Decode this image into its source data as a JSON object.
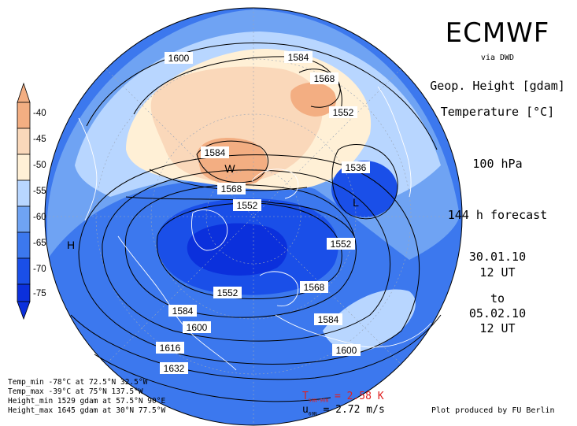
{
  "header": {
    "brand": "ECMWF",
    "via": "via DWD",
    "variable_1": "Geop. Height [gdam]",
    "variable_2": "Temperature [°C]",
    "level": "100 hPa",
    "forecast": "144 h forecast",
    "init_date": "30.01.10",
    "init_time": "12 UT",
    "to_label": "to",
    "valid_date": "05.02.10",
    "valid_time": "12 UT"
  },
  "legend": {
    "levels": [
      "-40",
      "-45",
      "-50",
      "-55",
      "-60",
      "-65",
      "-70",
      "-75"
    ],
    "colors": [
      "#f3ae82",
      "#fad8ba",
      "#fff0d6",
      "#b8d6ff",
      "#6fa3f3",
      "#3c78ee",
      "#1a4fe8",
      "#0b30dc"
    ]
  },
  "contours": {
    "labels": [
      "1600",
      "1584",
      "1568",
      "1552",
      "1584",
      "1568",
      "1552",
      "1536",
      "1552",
      "1552",
      "1568",
      "1584",
      "1600",
      "1584",
      "1600",
      "1616",
      "1632"
    ]
  },
  "markers": {
    "warm": "W",
    "low": "L",
    "high": "H"
  },
  "stats": {
    "temp_min": "Temp_min -78°C at 72.5°N 32.5°W",
    "temp_max": "Temp_max -39°C at 75°N 137.5°W",
    "height_min": "Height_min 1529 gdam at 57.5°N 90°E",
    "height_max": "Height_max 1645 gdam at 30°N 77.5°W"
  },
  "diagnostics": {
    "t_symbol": "T",
    "t_sub": "50N-90N",
    "t_value": "= 2.58 K",
    "u_symbol": "u",
    "u_sub": "60N",
    "u_value": "= 2.72 m/s"
  },
  "footer": {
    "credit": "Plot produced by FU Berlin"
  }
}
